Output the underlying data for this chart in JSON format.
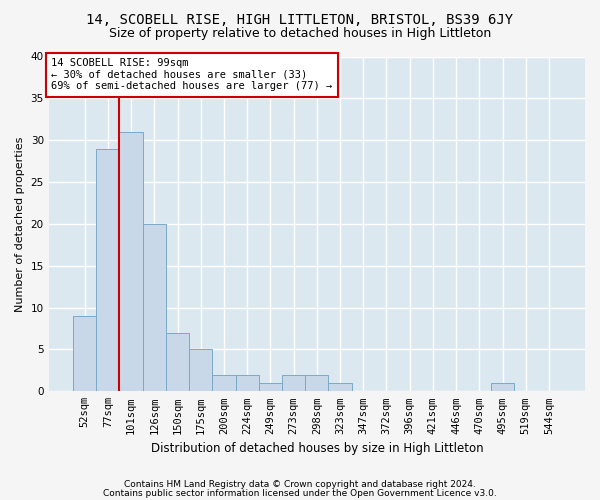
{
  "title1": "14, SCOBELL RISE, HIGH LITTLETON, BRISTOL, BS39 6JY",
  "title2": "Size of property relative to detached houses in High Littleton",
  "xlabel": "Distribution of detached houses by size in High Littleton",
  "ylabel": "Number of detached properties",
  "footnote1": "Contains HM Land Registry data © Crown copyright and database right 2024.",
  "footnote2": "Contains public sector information licensed under the Open Government Licence v3.0.",
  "bin_labels": [
    "52sqm",
    "77sqm",
    "101sqm",
    "126sqm",
    "150sqm",
    "175sqm",
    "200sqm",
    "224sqm",
    "249sqm",
    "273sqm",
    "298sqm",
    "323sqm",
    "347sqm",
    "372sqm",
    "396sqm",
    "421sqm",
    "446sqm",
    "470sqm",
    "495sqm",
    "519sqm",
    "544sqm"
  ],
  "bar_values": [
    9,
    29,
    31,
    20,
    7,
    5,
    2,
    2,
    1,
    2,
    2,
    1,
    0,
    0,
    0,
    0,
    0,
    0,
    1,
    0,
    0
  ],
  "bar_color": "#c8d8e8",
  "bar_edge_color": "#7aaac8",
  "vline_x": 1.5,
  "vline_color": "#cc0000",
  "annotation_text": "14 SCOBELL RISE: 99sqm\n← 30% of detached houses are smaller (33)\n69% of semi-detached houses are larger (77) →",
  "annotation_box_color": "#ffffff",
  "annotation_box_edge": "#cc0000",
  "ylim": [
    0,
    40
  ],
  "yticks": [
    0,
    5,
    10,
    15,
    20,
    25,
    30,
    35,
    40
  ],
  "background_color": "#dce8f0",
  "grid_color": "#ffffff",
  "fig_bg_color": "#f5f5f5",
  "title1_fontsize": 10,
  "title2_fontsize": 9,
  "xlabel_fontsize": 8.5,
  "ylabel_fontsize": 8,
  "tick_fontsize": 7.5,
  "annot_fontsize": 7.5,
  "footnote_fontsize": 6.5
}
